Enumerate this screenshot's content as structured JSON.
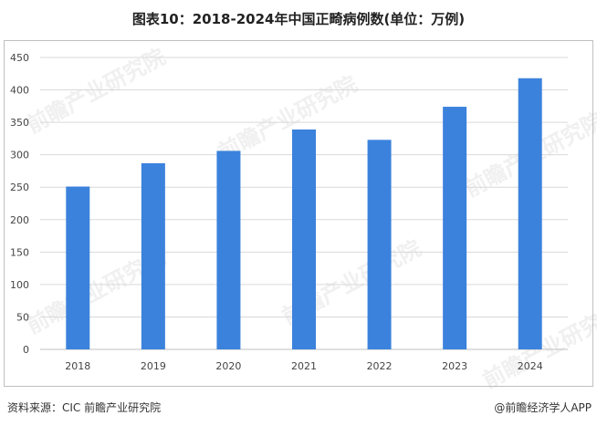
{
  "title": "图表10：2018-2024年中国正畸病例数(单位：万例)",
  "source": "资料来源：CIC 前瞻产业研究院",
  "app": "@前瞻经济学人APP",
  "watermark": "前瞻产业研究院",
  "colors": {
    "bar": "#3b82dc",
    "grid": "#d9d9d9",
    "axis": "#bfbfbf"
  },
  "chart_data": {
    "type": "bar",
    "title": "图表10：2018-2024年中国正畸病例数(单位：万例)",
    "categories": [
      "2018",
      "2019",
      "2020",
      "2021",
      "2022",
      "2023",
      "2024"
    ],
    "values": [
      251,
      287,
      306,
      339,
      323,
      374,
      418
    ],
    "ylim": [
      0,
      450
    ],
    "yticks": [
      0,
      50,
      100,
      150,
      200,
      250,
      300,
      350,
      400,
      450
    ],
    "grid": true,
    "legend": "none"
  }
}
